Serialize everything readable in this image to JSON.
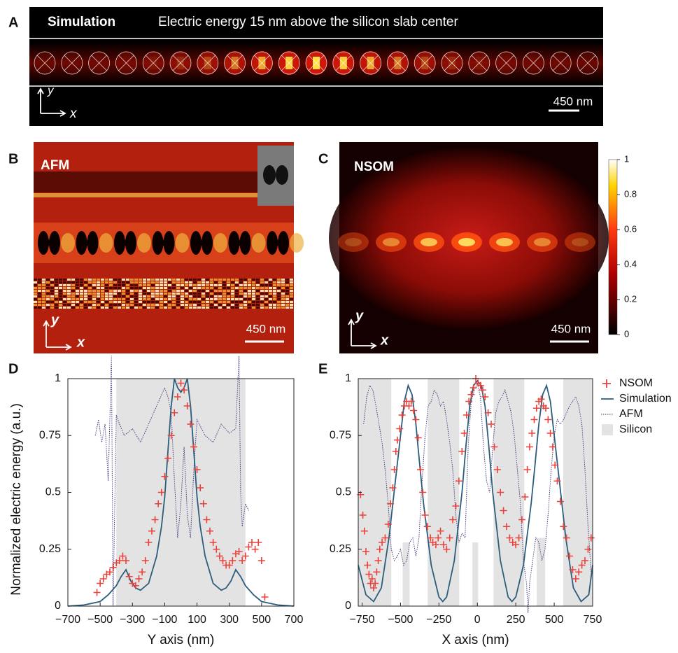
{
  "panels": {
    "A": {
      "letter": "A",
      "title": "Simulation",
      "subtitle": "Electric energy 15 nm above the silicon slab center",
      "scale": "450 nm",
      "axis_y": "y",
      "axis_x": "x"
    },
    "B": {
      "letter": "B",
      "label": "AFM",
      "scale": "450 nm",
      "axis_y": "y",
      "axis_x": "x"
    },
    "C": {
      "letter": "C",
      "label": "NSOM",
      "scale": "450 nm",
      "axis_y": "y",
      "axis_x": "x",
      "colorbar_ticks": [
        1,
        0.8,
        0.6,
        0.4,
        0.2,
        0
      ]
    }
  },
  "chart_data": [
    {
      "type": "line",
      "panel_label": "D",
      "x_label": "Y axis (nm)",
      "y_label": "Normalized electric energy (a.u.)",
      "xlim": [
        -700,
        700
      ],
      "ylim": [
        0,
        1
      ],
      "xticks": [
        {
          "value": -700,
          "label": "−700"
        },
        {
          "value": -500,
          "label": "−500"
        },
        {
          "value": -300,
          "label": "−300"
        },
        {
          "value": -100,
          "label": "−100"
        },
        100,
        300,
        500,
        700
      ],
      "yticks": [
        0,
        0.25,
        0.5,
        0.75,
        1
      ],
      "regions": {
        "color": "#e3e3e3",
        "spans": [
          [
            -400,
            400,
            1
          ]
        ]
      },
      "series": [
        {
          "style": "dotted",
          "color": "#4b3b7e",
          "x": [
            -530,
            -510,
            -490,
            -470,
            -450,
            -430,
            -420,
            -400,
            -380,
            -350,
            -300,
            -250,
            -200,
            -150,
            -100,
            -80,
            -60,
            -40,
            -20,
            0,
            20,
            40,
            60,
            80,
            100,
            150,
            200,
            250,
            300,
            340,
            360,
            370,
            380,
            400,
            420
          ],
          "values": [
            0.75,
            0.82,
            0.72,
            0.8,
            0.55,
            1.1,
            0,
            0.84,
            0.8,
            0.75,
            0.78,
            0.72,
            0.8,
            0.88,
            0.96,
            0.92,
            0.85,
            0.55,
            0.3,
            0.45,
            0.7,
            0.4,
            0.3,
            0.6,
            0.82,
            0.75,
            0.72,
            0.8,
            0.76,
            0.78,
            1.1,
            0.5,
            0.35,
            0.45,
            0.42
          ]
        },
        {
          "style": "line",
          "color": "#2c5d7c",
          "x": [
            -700,
            -600,
            -500,
            -450,
            -400,
            -370,
            -340,
            -310,
            -280,
            -250,
            -200,
            -150,
            -120,
            -100,
            -80,
            -60,
            -40,
            -20,
            0,
            20,
            40,
            60,
            80,
            100,
            120,
            150,
            200,
            250,
            280,
            310,
            340,
            370,
            400,
            450,
            500,
            600,
            700
          ],
          "values": [
            0,
            0.005,
            0.02,
            0.05,
            0.09,
            0.13,
            0.16,
            0.11,
            0.08,
            0.07,
            0.1,
            0.22,
            0.35,
            0.48,
            0.68,
            0.88,
            1,
            0.96,
            0.94,
            0.96,
            1,
            0.88,
            0.68,
            0.48,
            0.35,
            0.22,
            0.1,
            0.07,
            0.08,
            0.11,
            0.16,
            0.13,
            0.09,
            0.05,
            0.02,
            0.005,
            0
          ]
        },
        {
          "style": "plus",
          "color": "#e8423c",
          "x": [
            -520,
            -500,
            -480,
            -460,
            -440,
            -420,
            -400,
            -380,
            -360,
            -340,
            -320,
            -300,
            -280,
            -260,
            -240,
            -220,
            -200,
            -180,
            -160,
            -140,
            -120,
            -100,
            -80,
            -60,
            -40,
            -20,
            0,
            20,
            40,
            60,
            80,
            100,
            120,
            140,
            160,
            180,
            200,
            220,
            240,
            260,
            280,
            300,
            320,
            340,
            360,
            380,
            400,
            420,
            440,
            460,
            480,
            500,
            520
          ],
          "values": [
            0.06,
            0.1,
            0.12,
            0.14,
            0.15,
            0.17,
            0.19,
            0.2,
            0.22,
            0.2,
            0.13,
            0.1,
            0.09,
            0.12,
            0.15,
            0.2,
            0.28,
            0.33,
            0.38,
            0.45,
            0.5,
            0.57,
            0.65,
            0.75,
            0.85,
            0.92,
            0.98,
            0.95,
            0.88,
            0.8,
            0.7,
            0.6,
            0.52,
            0.45,
            0.38,
            0.33,
            0.28,
            0.25,
            0.22,
            0.2,
            0.18,
            0.18,
            0.2,
            0.23,
            0.24,
            0.2,
            0.22,
            0.26,
            0.28,
            0.25,
            0.28,
            0.2,
            0.04
          ]
        }
      ]
    },
    {
      "type": "line",
      "panel_label": "E",
      "x_label": "X axis (nm)",
      "xlim": [
        -775,
        750
      ],
      "ylim": [
        0,
        1
      ],
      "xticks": [
        {
          "value": -750,
          "label": "−750"
        },
        {
          "value": -500,
          "label": "−500"
        },
        {
          "value": -250,
          "label": "−250"
        },
        0,
        250,
        500,
        750
      ],
      "yticks": [
        0,
        0.25,
        0.5,
        0.75,
        1
      ],
      "regions": {
        "name": "Silicon",
        "color": "#e3e3e3",
        "spans": [
          [
            -775,
            -560,
            1
          ],
          [
            -486,
            -441,
            0.28
          ],
          [
            -323,
            -118,
            1
          ],
          [
            -32,
            5,
            0.28
          ],
          [
            105,
            305,
            1
          ],
          [
            386,
            441,
            0.3
          ],
          [
            559,
            750,
            1
          ]
        ]
      },
      "legend": "right",
      "series": [
        {
          "name": "NSOM",
          "style": "plus",
          "color": "#e8423c",
          "x": [
            -760,
            -745,
            -735,
            -725,
            -715,
            -705,
            -695,
            -685,
            -675,
            -665,
            -655,
            -645,
            -635,
            -620,
            -600,
            -580,
            -565,
            -550,
            -540,
            -530,
            -520,
            -505,
            -490,
            -475,
            -460,
            -445,
            -430,
            -415,
            -400,
            -385,
            -370,
            -355,
            -340,
            -325,
            -305,
            -290,
            -270,
            -255,
            -240,
            -220,
            -200,
            -180,
            -160,
            -140,
            -120,
            -100,
            -85,
            -70,
            -55,
            -40,
            -25,
            -10,
            5,
            20,
            35,
            50,
            70,
            90,
            110,
            130,
            150,
            170,
            190,
            210,
            230,
            250,
            270,
            290,
            310,
            325,
            340,
            355,
            370,
            385,
            400,
            415,
            430,
            445,
            460,
            475,
            490,
            505,
            520,
            540,
            560,
            580,
            600,
            620,
            640,
            660,
            680,
            700,
            720,
            740
          ],
          "values": [
            0.49,
            0.4,
            0.33,
            0.24,
            0.18,
            0.14,
            0.1,
            0.12,
            0.08,
            0.1,
            0.15,
            0.2,
            0.25,
            0.28,
            0.3,
            0.36,
            0.45,
            0.52,
            0.6,
            0.68,
            0.73,
            0.78,
            0.84,
            0.88,
            0.9,
            0.88,
            0.9,
            0.86,
            0.82,
            0.74,
            0.6,
            0.5,
            0.4,
            0.35,
            0.3,
            0.28,
            0.27,
            0.3,
            0.33,
            0.27,
            0.25,
            0.3,
            0.38,
            0.44,
            0.55,
            0.68,
            0.76,
            0.84,
            0.9,
            0.93,
            0.96,
            1,
            0.98,
            0.97,
            0.95,
            0.92,
            0.85,
            0.8,
            0.7,
            0.6,
            0.5,
            0.42,
            0.35,
            0.3,
            0.28,
            0.27,
            0.3,
            0.38,
            0.48,
            0.6,
            0.7,
            0.76,
            0.82,
            0.87,
            0.9,
            0.91,
            0.88,
            0.87,
            0.82,
            0.76,
            0.7,
            0.62,
            0.55,
            0.46,
            0.35,
            0.3,
            0.22,
            0.16,
            0.12,
            0.15,
            0.18,
            0.2,
            0.25,
            0.3
          ]
        },
        {
          "name": "Simulation",
          "style": "line",
          "color": "#2c5d7c",
          "x": [
            -775,
            -725,
            -675,
            -625,
            -575,
            -525,
            -500,
            -475,
            -450,
            -425,
            -400,
            -375,
            -350,
            -300,
            -250,
            -225,
            -200,
            -150,
            -100,
            -75,
            -50,
            -25,
            0,
            25,
            50,
            75,
            100,
            150,
            200,
            225,
            250,
            300,
            350,
            375,
            400,
            425,
            450,
            475,
            500,
            525,
            575,
            625,
            675,
            725,
            750
          ],
          "values": [
            0.18,
            0.05,
            0.02,
            0.08,
            0.3,
            0.6,
            0.75,
            0.9,
            0.97,
            0.93,
            0.8,
            0.62,
            0.45,
            0.18,
            0.04,
            0.02,
            0.04,
            0.2,
            0.5,
            0.7,
            0.88,
            0.97,
            0.99,
            0.97,
            0.88,
            0.7,
            0.5,
            0.2,
            0.04,
            0.02,
            0.04,
            0.18,
            0.45,
            0.62,
            0.8,
            0.93,
            0.97,
            0.9,
            0.75,
            0.6,
            0.3,
            0.08,
            0.02,
            0.05,
            0.18
          ]
        },
        {
          "name": "AFM",
          "style": "dotted",
          "color": "#4b3b7e",
          "x": [
            -740,
            -720,
            -700,
            -680,
            -660,
            -640,
            -620,
            -600,
            -580,
            -560,
            -540,
            -520,
            -500,
            -480,
            -460,
            -440,
            -420,
            -400,
            -380,
            -360,
            -340,
            -320,
            -300,
            -280,
            -260,
            -240,
            -220,
            -200,
            -180,
            -160,
            -140,
            -120,
            -100,
            -80,
            -60,
            -40,
            -20,
            0,
            20,
            40,
            60,
            80,
            100,
            120,
            140,
            160,
            180,
            200,
            220,
            240,
            260,
            280,
            300,
            320,
            330,
            340,
            360,
            380,
            400,
            420,
            440,
            460,
            480,
            500,
            520,
            540,
            560,
            580,
            600,
            620,
            640,
            660,
            680,
            700,
            720,
            740
          ],
          "values": [
            0.8,
            0.92,
            0.97,
            0.95,
            0.88,
            0.8,
            0.72,
            0.6,
            0.45,
            0.25,
            0.2,
            0.22,
            0.25,
            0.18,
            0.2,
            0.28,
            0.3,
            0.22,
            0.3,
            0.55,
            0.75,
            0.88,
            0.9,
            0.95,
            0.93,
            0.88,
            0.9,
            0.82,
            0.72,
            0.6,
            0.4,
            0.28,
            0.32,
            0.3,
            0.7,
            0.9,
            0.95,
            0.98,
            0.92,
            0.7,
            0.55,
            0.5,
            0.7,
            0.85,
            0.9,
            0.92,
            0.95,
            0.9,
            0.85,
            0.75,
            0.6,
            0.45,
            0.2,
            0.1,
            -0.03,
            0.1,
            0.2,
            0.3,
            0.28,
            0.2,
            0.25,
            0.4,
            0.6,
            0.75,
            0.82,
            0.8,
            0.82,
            0.85,
            0.88,
            0.9,
            0.92,
            0.88,
            0.8,
            0.6,
            0.35,
            0.15
          ]
        }
      ]
    }
  ]
}
